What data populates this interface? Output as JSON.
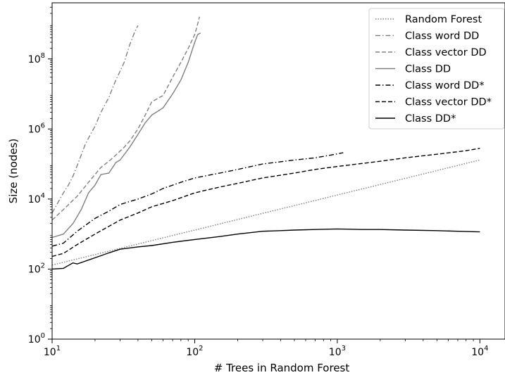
{
  "chart_data": {
    "type": "line",
    "xlabel": "# Trees in Random Forest",
    "ylabel": "Size (nodes)",
    "xscale": "log",
    "yscale": "log",
    "xlim": [
      10,
      15000
    ],
    "ylim": [
      1,
      4000000000
    ],
    "x_ticks": [
      {
        "base": "10",
        "exp": "1",
        "value": 10
      },
      {
        "base": "10",
        "exp": "2",
        "value": 100
      },
      {
        "base": "10",
        "exp": "3",
        "value": 1000
      },
      {
        "base": "10",
        "exp": "4",
        "value": 10000
      }
    ],
    "y_ticks": [
      {
        "base": "10",
        "exp": "0",
        "value": 1
      },
      {
        "base": "10",
        "exp": "2",
        "value": 100
      },
      {
        "base": "10",
        "exp": "4",
        "value": 10000
      },
      {
        "base": "10",
        "exp": "6",
        "value": 1000000
      },
      {
        "base": "10",
        "exp": "8",
        "value": 100000000
      }
    ],
    "grid": false,
    "legend_position": "top-right",
    "series": [
      {
        "name": "Random Forest",
        "color": "#808080",
        "style": "dotted",
        "points": [
          [
            10,
            130
          ],
          [
            30,
            390
          ],
          [
            100,
            1300
          ],
          [
            300,
            3900
          ],
          [
            1000,
            13000
          ],
          [
            3000,
            39000
          ],
          [
            10000,
            130000
          ]
        ]
      },
      {
        "name": "Class word DD",
        "color": "#808080",
        "style": "dashdot",
        "points": [
          [
            10,
            4000
          ],
          [
            11,
            8000
          ],
          [
            12,
            15000
          ],
          [
            13,
            25000
          ],
          [
            14,
            45000
          ],
          [
            15,
            90000
          ],
          [
            16,
            180000
          ],
          [
            17,
            350000
          ],
          [
            18,
            550000
          ],
          [
            20,
            1200000
          ],
          [
            22,
            3000000
          ],
          [
            25,
            8000000
          ],
          [
            28,
            25000000
          ],
          [
            30,
            45000000
          ],
          [
            32,
            80000000
          ],
          [
            35,
            250000000
          ],
          [
            38,
            600000000
          ],
          [
            40,
            900000000
          ]
        ]
      },
      {
        "name": "Class vector DD",
        "color": "#808080",
        "style": "dashed",
        "points": [
          [
            10,
            2500
          ],
          [
            12,
            5000
          ],
          [
            15,
            12000
          ],
          [
            18,
            30000
          ],
          [
            20,
            50000
          ],
          [
            22,
            80000
          ],
          [
            25,
            120000
          ],
          [
            28,
            180000
          ],
          [
            32,
            300000
          ],
          [
            35,
            450000
          ],
          [
            40,
            1000000
          ],
          [
            45,
            2500000
          ],
          [
            50,
            6000000
          ],
          [
            60,
            9000000
          ],
          [
            70,
            30000000
          ],
          [
            80,
            80000000
          ],
          [
            90,
            200000000
          ],
          [
            100,
            500000000
          ],
          [
            105,
            1000000000
          ],
          [
            108,
            1600000000
          ]
        ]
      },
      {
        "name": "Class DD",
        "color": "#808080",
        "style": "solid",
        "points": [
          [
            10,
            800
          ],
          [
            12,
            1000
          ],
          [
            14,
            2000
          ],
          [
            16,
            5000
          ],
          [
            18,
            15000
          ],
          [
            20,
            25000
          ],
          [
            22,
            50000
          ],
          [
            25,
            55000
          ],
          [
            28,
            110000
          ],
          [
            30,
            130000
          ],
          [
            35,
            300000
          ],
          [
            40,
            700000
          ],
          [
            45,
            1500000
          ],
          [
            50,
            2500000
          ],
          [
            60,
            4000000
          ],
          [
            70,
            10000000
          ],
          [
            80,
            25000000
          ],
          [
            90,
            80000000
          ],
          [
            100,
            300000000
          ],
          [
            105,
            500000000
          ],
          [
            110,
            550000000
          ]
        ]
      },
      {
        "name": "Class word DD*",
        "color": "#000000",
        "style": "dashdot",
        "points": [
          [
            10,
            450
          ],
          [
            12,
            550
          ],
          [
            15,
            1200
          ],
          [
            20,
            2800
          ],
          [
            25,
            4500
          ],
          [
            30,
            7000
          ],
          [
            40,
            10000
          ],
          [
            50,
            14000
          ],
          [
            60,
            20000
          ],
          [
            80,
            30000
          ],
          [
            100,
            40000
          ],
          [
            150,
            55000
          ],
          [
            200,
            70000
          ],
          [
            300,
            100000
          ],
          [
            500,
            130000
          ],
          [
            700,
            150000
          ],
          [
            900,
            180000
          ],
          [
            1100,
            210000
          ]
        ]
      },
      {
        "name": "Class vector DD*",
        "color": "#000000",
        "style": "dashed",
        "points": [
          [
            10,
            230
          ],
          [
            12,
            280
          ],
          [
            15,
            500
          ],
          [
            20,
            1000
          ],
          [
            30,
            2500
          ],
          [
            40,
            4000
          ],
          [
            50,
            6000
          ],
          [
            70,
            9000
          ],
          [
            100,
            15000
          ],
          [
            150,
            22000
          ],
          [
            200,
            28000
          ],
          [
            300,
            40000
          ],
          [
            500,
            55000
          ],
          [
            700,
            70000
          ],
          [
            1000,
            85000
          ],
          [
            2000,
            120000
          ],
          [
            3000,
            150000
          ],
          [
            5000,
            190000
          ],
          [
            8000,
            240000
          ],
          [
            10000,
            280000
          ]
        ]
      },
      {
        "name": "Class DD*",
        "color": "#000000",
        "style": "solid",
        "points": [
          [
            10,
            100
          ],
          [
            12,
            105
          ],
          [
            14,
            150
          ],
          [
            15,
            140
          ],
          [
            20,
            210
          ],
          [
            25,
            290
          ],
          [
            30,
            370
          ],
          [
            40,
            430
          ],
          [
            50,
            470
          ],
          [
            70,
            580
          ],
          [
            100,
            700
          ],
          [
            150,
            850
          ],
          [
            200,
            1000
          ],
          [
            300,
            1200
          ],
          [
            400,
            1250
          ],
          [
            500,
            1300
          ],
          [
            700,
            1350
          ],
          [
            1000,
            1400
          ],
          [
            1500,
            1350
          ],
          [
            2000,
            1350
          ],
          [
            3000,
            1300
          ],
          [
            5000,
            1250
          ],
          [
            7000,
            1200
          ],
          [
            10000,
            1150
          ]
        ]
      }
    ]
  }
}
